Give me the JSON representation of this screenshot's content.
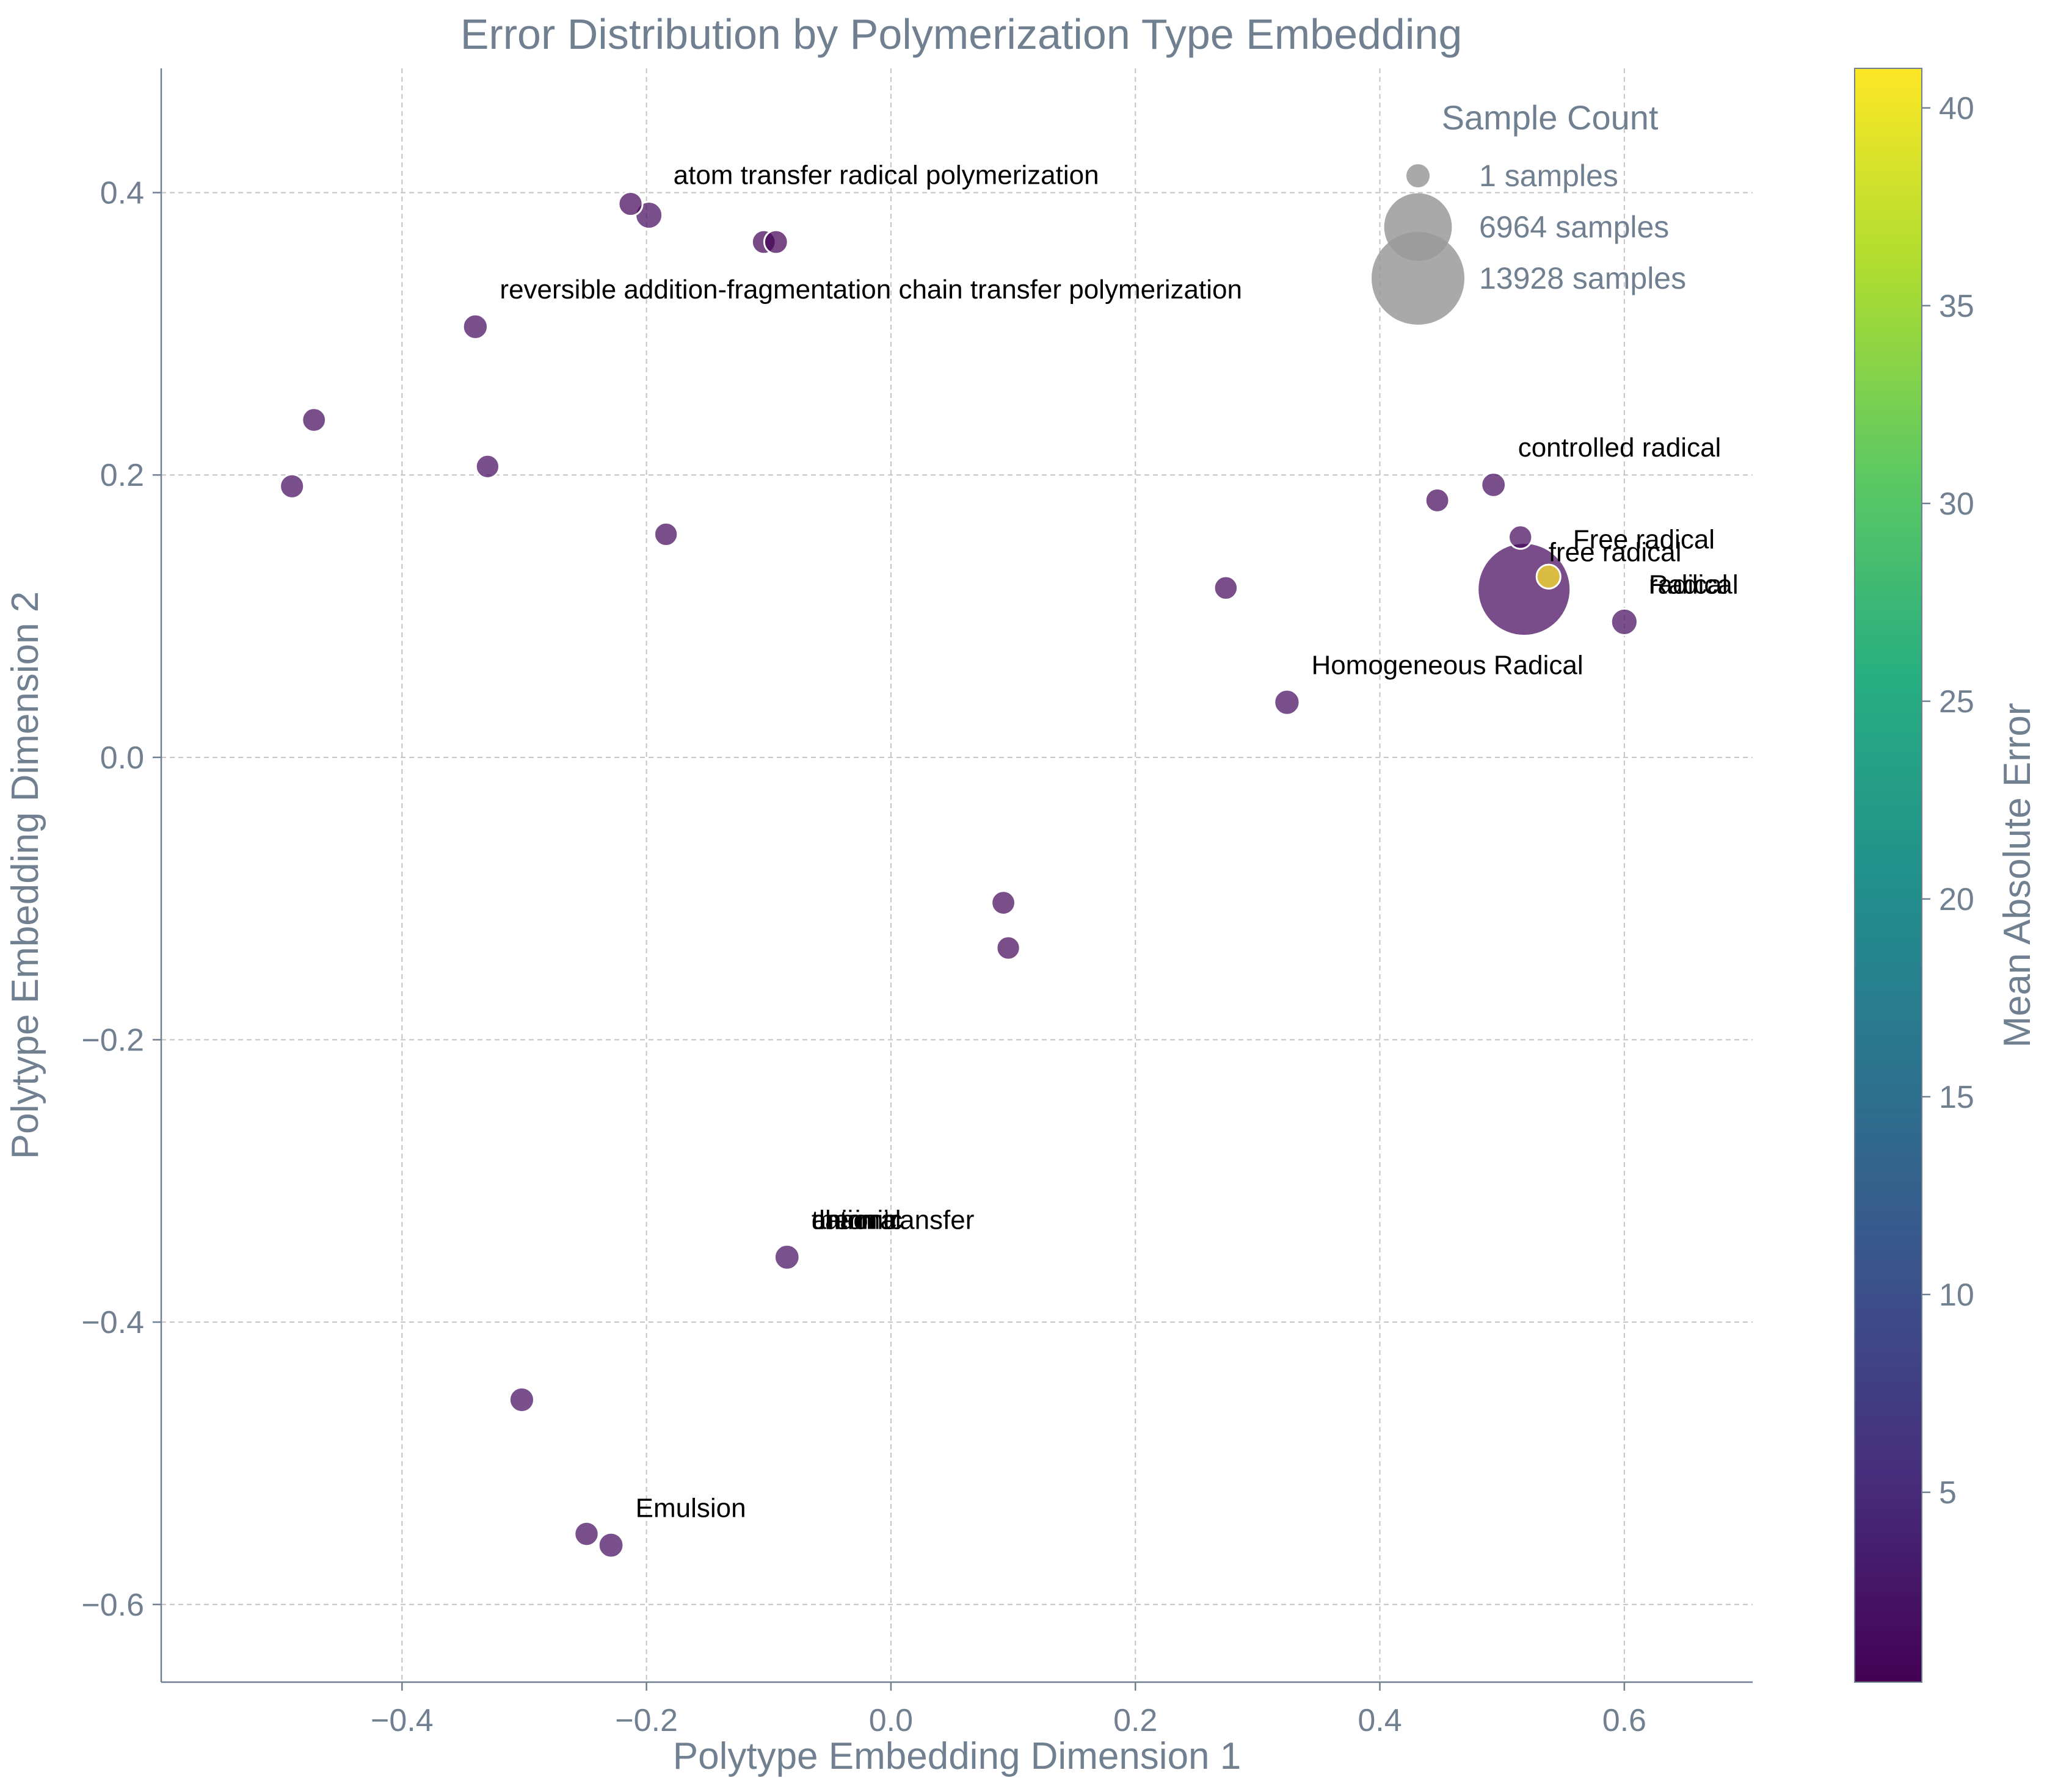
{
  "chart_data": {
    "type": "scatter",
    "title": "Error Distribution by Polymerization Type Embedding",
    "xlabel": "Polytype Embedding Dimension 1",
    "ylabel": "Polytype Embedding Dimension 2",
    "xlim": [
      -0.597,
      0.705
    ],
    "ylim": [
      -0.655,
      0.488
    ],
    "xticks": [
      -0.4,
      -0.2,
      0.0,
      0.2,
      0.4,
      0.6
    ],
    "xtick_labels": [
      "−0.4",
      "−0.2",
      "0.0",
      "0.2",
      "0.4",
      "0.6"
    ],
    "yticks": [
      -0.6,
      -0.4,
      -0.2,
      0.0,
      0.2,
      0.4
    ],
    "ytick_labels": [
      "−0.6",
      "−0.4",
      "−0.2",
      "0.0",
      "0.2",
      "0.4"
    ],
    "grid": true,
    "colormap": "viridis",
    "colorbar": {
      "label": "Mean Absolute Error",
      "range": [
        0.2,
        41
      ],
      "ticks": [
        5,
        10,
        15,
        20,
        25,
        30,
        35,
        40
      ],
      "tick_labels": [
        "5",
        "10",
        "15",
        "20",
        "25",
        "30",
        "35",
        "40"
      ]
    },
    "size_legend": {
      "title": "Sample Count",
      "placement": "upper-right",
      "entries": [
        {
          "label": "1 samples",
          "count": 1
        },
        {
          "label": "6964 samples",
          "count": 6964
        },
        {
          "label": "13928 samples",
          "count": 13928
        }
      ]
    },
    "points": [
      {
        "x": -0.213,
        "y": 0.392,
        "count": 60,
        "error": 0.9
      },
      {
        "x": -0.198,
        "y": 0.384,
        "count": 320,
        "error": 1.5
      },
      {
        "x": -0.104,
        "y": 0.365,
        "count": 40,
        "error": 0.8
      },
      {
        "x": -0.094,
        "y": 0.365,
        "count": 40,
        "error": 0.4
      },
      {
        "x": -0.34,
        "y": 0.305,
        "count": 120,
        "error": 1.6
      },
      {
        "x": -0.472,
        "y": 0.239,
        "count": 40,
        "error": 1.4
      },
      {
        "x": -0.49,
        "y": 0.192,
        "count": 60,
        "error": 1.6
      },
      {
        "x": -0.33,
        "y": 0.206,
        "count": 15,
        "error": 1.5
      },
      {
        "x": -0.184,
        "y": 0.158,
        "count": 15,
        "error": 1.4
      },
      {
        "x": 0.493,
        "y": 0.193,
        "count": 90,
        "error": 1.6
      },
      {
        "x": 0.447,
        "y": 0.182,
        "count": 40,
        "error": 1.3
      },
      {
        "x": 0.515,
        "y": 0.156,
        "count": 20,
        "error": 1.3
      },
      {
        "x": 0.538,
        "y": 0.128,
        "count": 60,
        "error": 41.0
      },
      {
        "x": 0.518,
        "y": 0.119,
        "count": 13928,
        "error": 1.1
      },
      {
        "x": 0.6,
        "y": 0.096,
        "count": 270,
        "error": 1.6
      },
      {
        "x": 0.274,
        "y": 0.12,
        "count": 25,
        "error": 1.3
      },
      {
        "x": 0.324,
        "y": 0.039,
        "count": 170,
        "error": 1.6
      },
      {
        "x": 0.092,
        "y": -0.103,
        "count": 40,
        "error": 1.3
      },
      {
        "x": 0.096,
        "y": -0.135,
        "count": 15,
        "error": 1.3
      },
      {
        "x": -0.085,
        "y": -0.354,
        "count": 140,
        "error": 1.7
      },
      {
        "x": -0.302,
        "y": -0.455,
        "count": 110,
        "error": 1.6
      },
      {
        "x": -0.249,
        "y": -0.55,
        "count": 70,
        "error": 1.5
      },
      {
        "x": -0.229,
        "y": -0.558,
        "count": 140,
        "error": 1.6
      }
    ],
    "annotations": [
      {
        "text": "atom transfer radical polymerization",
        "x": -0.178,
        "y": 0.406
      },
      {
        "text": "reversible addition-fragmentation chain transfer polymerization",
        "x": -0.32,
        "y": 0.325
      },
      {
        "text": "controlled radical",
        "x": 0.513,
        "y": 0.213
      },
      {
        "text": "Free radical",
        "x": 0.558,
        "y": 0.148
      },
      {
        "text": "free radical",
        "x": 0.538,
        "y": 0.139
      },
      {
        "text": "Radical",
        "x": 0.62,
        "y": 0.116
      },
      {
        "text": "radical",
        "x": 0.62,
        "y": 0.116
      },
      {
        "text": "Homogeneous Radical",
        "x": 0.344,
        "y": 0.059
      },
      {
        "text": "thermal",
        "x": -0.065,
        "y": -0.334
      },
      {
        "text": "anionic",
        "x": -0.065,
        "y": -0.334
      },
      {
        "text": "cationic",
        "x": -0.065,
        "y": -0.334
      },
      {
        "text": "chain transfer",
        "x": -0.065,
        "y": -0.334
      },
      {
        "text": "Emulsion",
        "x": -0.209,
        "y": -0.538
      }
    ]
  }
}
